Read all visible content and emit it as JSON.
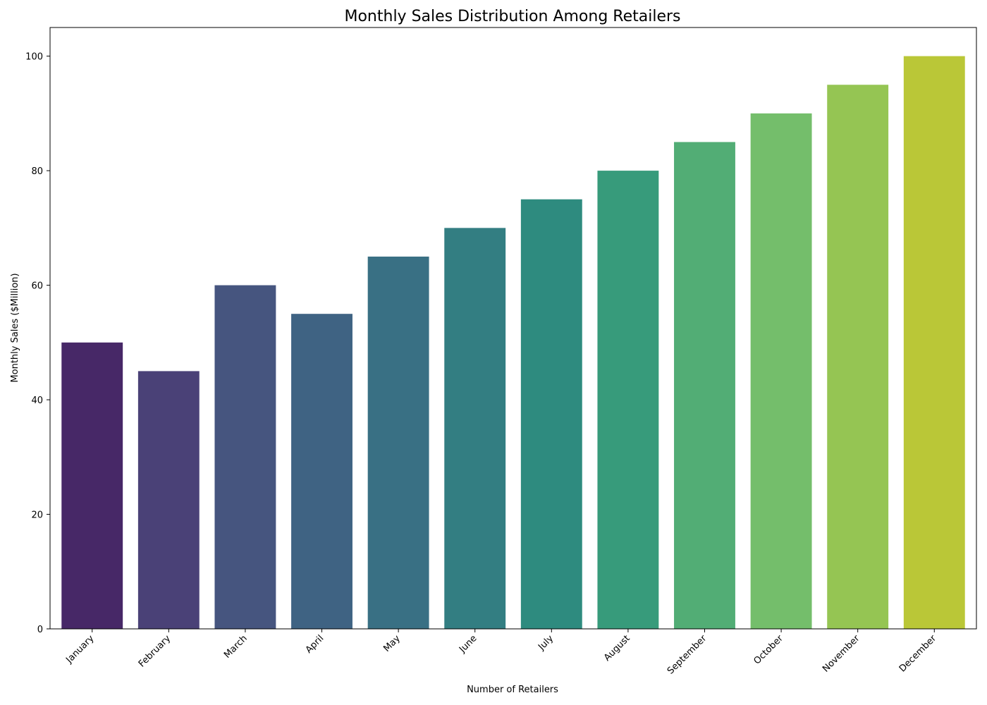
{
  "chart_data": {
    "type": "bar",
    "title": "Monthly Sales Distribution Among Retailers",
    "xlabel": "Number of Retailers",
    "ylabel": "Monthly Sales ($Million)",
    "categories": [
      "January",
      "February",
      "March",
      "April",
      "May",
      "June",
      "July",
      "August",
      "September",
      "October",
      "November",
      "December"
    ],
    "values": [
      50,
      45,
      60,
      55,
      65,
      70,
      75,
      80,
      85,
      90,
      95,
      100
    ],
    "colors": [
      "#472867",
      "#4a4177",
      "#46557f",
      "#3f6383",
      "#397084",
      "#337e82",
      "#2e8b7f",
      "#379b7b",
      "#52ad75",
      "#74be6b",
      "#95c553",
      "#bac737"
    ],
    "ylim": [
      0,
      105
    ],
    "yticks": [
      0,
      20,
      40,
      60,
      80,
      100
    ],
    "grid": false,
    "legend": "none"
  }
}
